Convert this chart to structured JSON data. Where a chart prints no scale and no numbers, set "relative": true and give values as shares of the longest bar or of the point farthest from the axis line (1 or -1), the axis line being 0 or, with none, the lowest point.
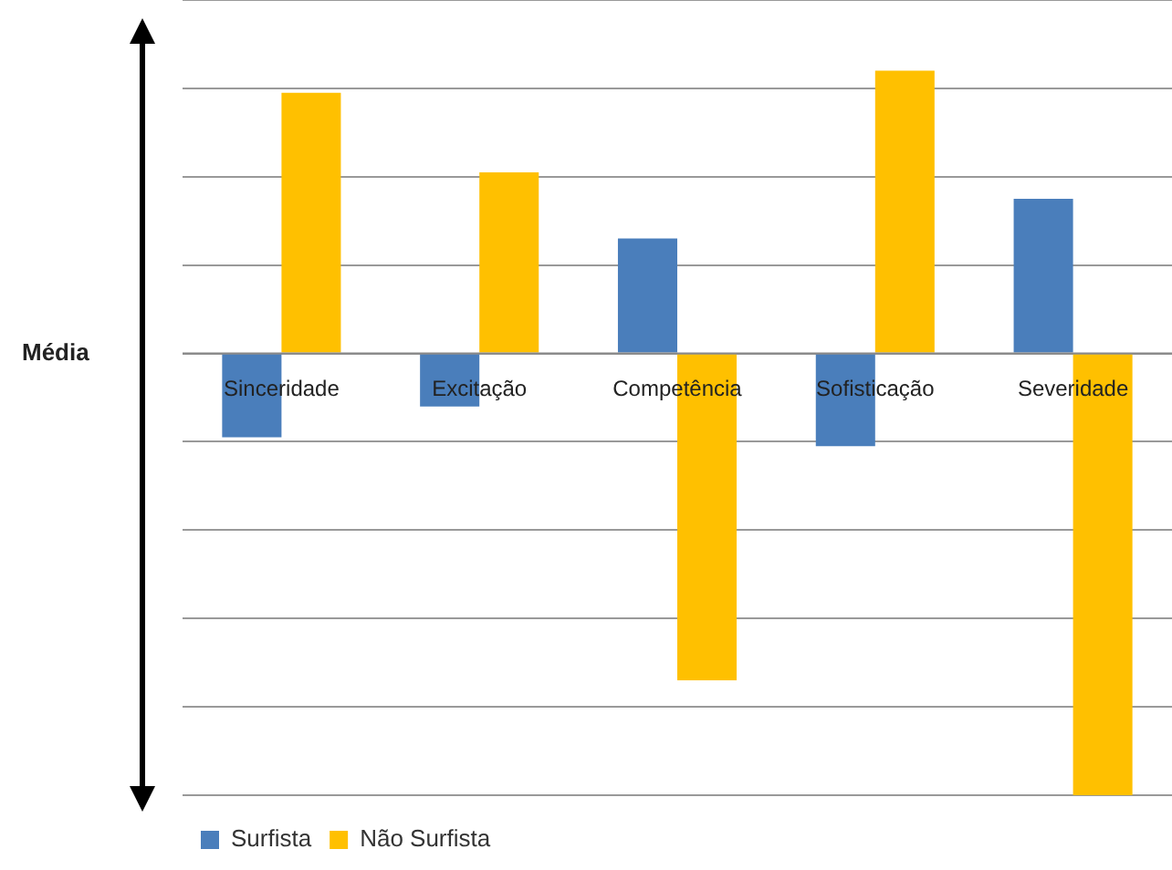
{
  "chart_data": {
    "type": "bar",
    "relative": true,
    "ylabel": "Média",
    "categories": [
      "Sinceridade",
      "Excitação",
      "Competência",
      "Sofisticação",
      "Severidade"
    ],
    "series": [
      {
        "name": "Surfista",
        "color": "#4a7ebb",
        "values": [
          -0.19,
          -0.12,
          0.26,
          -0.21,
          0.35
        ]
      },
      {
        "name": "Não Surfista",
        "color": "#ffc000",
        "values": [
          0.59,
          0.41,
          -0.74,
          0.64,
          -1
        ]
      }
    ],
    "grid": "y",
    "legend": "bottom left"
  }
}
